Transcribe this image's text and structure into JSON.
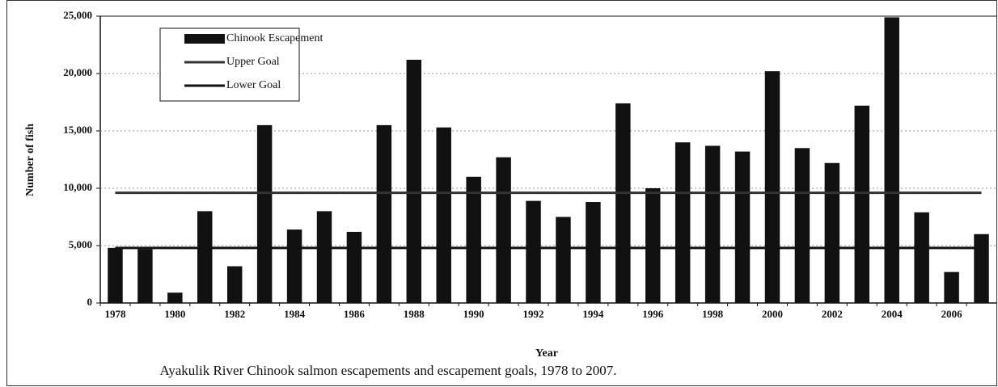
{
  "chart_data": {
    "type": "bar",
    "title": "Ayakulik River Chinook salmon escapements and escapement goals, 1978 to 2007.",
    "xlabel": "Year",
    "ylabel": "Number of fish",
    "categories": [
      "1978",
      null,
      "1980",
      null,
      "1982",
      null,
      "1984",
      null,
      "1986",
      null,
      "1988",
      null,
      "1990",
      null,
      "1992",
      null,
      "1994",
      null,
      "1996",
      null,
      "1998",
      null,
      "2000",
      null,
      "2002",
      null,
      "2004",
      null,
      "2006",
      null
    ],
    "series": [
      {
        "name": "Chinook Escapement",
        "color": "#111111",
        "kind": "bar",
        "values": [
          4800,
          4700,
          900,
          8000,
          3200,
          15500,
          6400,
          8000,
          6200,
          15500,
          21200,
          15300,
          11000,
          12700,
          8900,
          7500,
          8800,
          17400,
          10000,
          14000,
          13700,
          13200,
          20200,
          13500,
          12200,
          17200,
          24900,
          7900,
          2700,
          6000
        ]
      },
      {
        "name": "Upper Goal",
        "color": "#333333",
        "kind": "line",
        "values": [
          9600,
          9600,
          9600,
          9600,
          9600,
          9600,
          9600,
          9600,
          9600,
          9600,
          9600,
          9600,
          9600,
          9600,
          9600,
          9600,
          9600,
          9600,
          9600,
          9600,
          9600,
          9600,
          9600,
          9600,
          9600,
          9600,
          9600,
          9600,
          9600,
          9600
        ]
      },
      {
        "name": "Lower Goal",
        "color": "#111111",
        "kind": "line",
        "values": [
          4800,
          4800,
          4800,
          4800,
          4800,
          4800,
          4800,
          4800,
          4800,
          4800,
          4800,
          4800,
          4800,
          4800,
          4800,
          4800,
          4800,
          4800,
          4800,
          4800,
          4800,
          4800,
          4800,
          4800,
          4800,
          4800,
          4800,
          4800,
          4800,
          4800
        ]
      }
    ],
    "ylim": [
      0,
      25000
    ],
    "yticks": [
      0,
      {
        "value": 5000,
        "label": "5,000"
      },
      {
        "value": 10000,
        "label": "10,000"
      },
      {
        "value": 15000,
        "label": "15,000"
      },
      {
        "value": 20000,
        "label": "20,000"
      },
      {
        "value": 25000,
        "label": "25,000"
      }
    ],
    "legend": "upper-left"
  }
}
